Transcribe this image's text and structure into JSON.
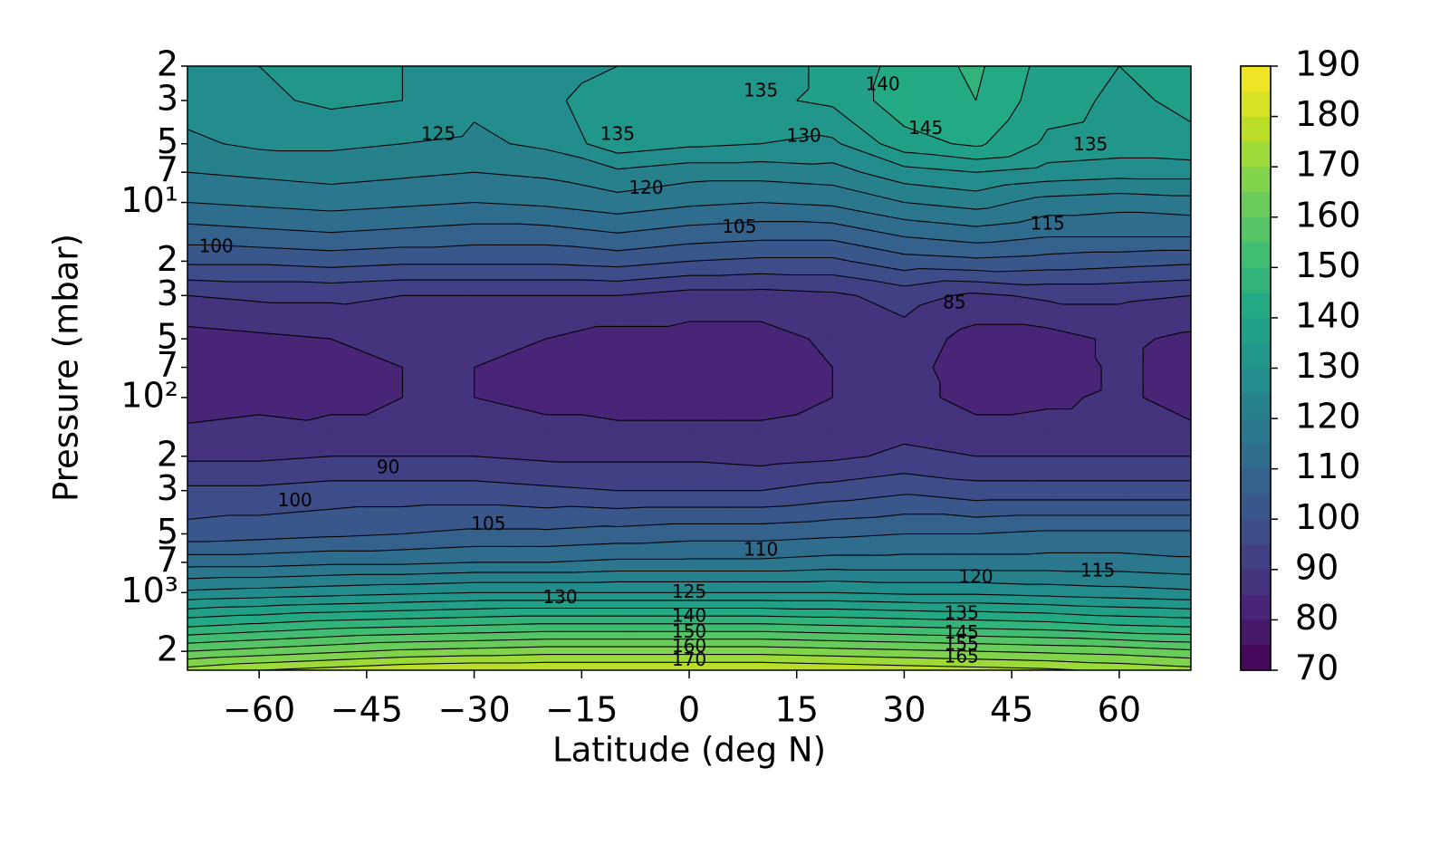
{
  "chart_data": {
    "type": "contourf",
    "xlabel": "Latitude (deg N)",
    "ylabel": "Pressure (mbar)",
    "xlim": [
      -70,
      70
    ],
    "xticks": [
      {
        "value": -60,
        "label": "−60"
      },
      {
        "value": -45,
        "label": "−45"
      },
      {
        "value": -30,
        "label": "−30"
      },
      {
        "value": -15,
        "label": "−15"
      },
      0,
      15,
      30,
      45,
      60
    ],
    "ylim": [
      2,
      2500
    ],
    "ylog": true,
    "yinverted": true,
    "yticks": [
      2,
      3,
      5,
      7,
      {
        "value": 10,
        "label": "10¹"
      },
      {
        "value": 20,
        "label": "2"
      },
      {
        "value": 30,
        "label": "3"
      },
      {
        "value": 50,
        "label": "5"
      },
      {
        "value": 70,
        "label": "7"
      },
      {
        "value": 100,
        "label": "10²"
      },
      {
        "value": 200,
        "label": "2"
      },
      {
        "value": 300,
        "label": "3"
      },
      {
        "value": 500,
        "label": "5"
      },
      {
        "value": 700,
        "label": "7"
      },
      {
        "value": 1000,
        "label": "10³"
      },
      {
        "value": 2000,
        "label": "2"
      }
    ],
    "colormap": "viridis",
    "clim": [
      70,
      190
    ],
    "cticks": [
      70,
      80,
      90,
      100,
      110,
      120,
      130,
      140,
      150,
      160,
      170,
      180,
      190
    ],
    "levels": [
      70,
      75,
      80,
      85,
      90,
      95,
      100,
      105,
      110,
      115,
      120,
      125,
      130,
      135,
      140,
      145,
      150,
      155,
      160,
      165,
      170,
      175,
      180,
      185,
      190
    ],
    "x": [
      -70,
      -60,
      -50,
      -40,
      -30,
      -20,
      -10,
      0,
      10,
      20,
      30,
      40,
      50,
      60,
      70
    ],
    "y": [
      2,
      3,
      5,
      7,
      10,
      15,
      20,
      30,
      50,
      70,
      100,
      150,
      200,
      300,
      500,
      700,
      1000,
      1500,
      2000,
      2500
    ],
    "z": [
      [
        128,
        130,
        132,
        130,
        127,
        125,
        130,
        133,
        133,
        136,
        142,
        146,
        138,
        135,
        137
      ],
      [
        127,
        129,
        131,
        130,
        126,
        128,
        135,
        134,
        134,
        136,
        143,
        145,
        137,
        134,
        136
      ],
      [
        124,
        126,
        126,
        125,
        124,
        126,
        133,
        131,
        130,
        129,
        138,
        141,
        134,
        133,
        134
      ],
      [
        120,
        121,
        122,
        121,
        120,
        121,
        124,
        122,
        122,
        123,
        128,
        130,
        128,
        127,
        127
      ],
      [
        115,
        116,
        117,
        116,
        115,
        116,
        118,
        116,
        115,
        116,
        120,
        122,
        118,
        117,
        118
      ],
      [
        107,
        108,
        109,
        108,
        107,
        107,
        109,
        107,
        106,
        106,
        110,
        112,
        110,
        110,
        110
      ],
      [
        101,
        101,
        102,
        101,
        101,
        101,
        102,
        100,
        99,
        99,
        103,
        104,
        103,
        102,
        101
      ],
      [
        90,
        91,
        91,
        90,
        90,
        90,
        90,
        88,
        88,
        89,
        92,
        89,
        91,
        91,
        90
      ],
      [
        83,
        84,
        85,
        86,
        86,
        85,
        83,
        83,
        83,
        86,
        88,
        83,
        83,
        86,
        84
      ],
      [
        82,
        83,
        84,
        85,
        85,
        84,
        82,
        82,
        82,
        85,
        87,
        82,
        82,
        86,
        83
      ],
      [
        82,
        83,
        84,
        85,
        85,
        84,
        83,
        83,
        83,
        85,
        87,
        83,
        84,
        86,
        83
      ],
      [
        86,
        87,
        86,
        86,
        86,
        86,
        86,
        86,
        86,
        87,
        89,
        87,
        87,
        87,
        86
      ],
      [
        89,
        89,
        90,
        90,
        90,
        89,
        89,
        89,
        88,
        89,
        91,
        90,
        90,
        90,
        90
      ],
      [
        96,
        96,
        97,
        97,
        97,
        96,
        95,
        95,
        95,
        97,
        99,
        97,
        97,
        97,
        97
      ],
      [
        102,
        103,
        104,
        105,
        106,
        106,
        107,
        108,
        108,
        109,
        110,
        110,
        111,
        111,
        111
      ],
      [
        113,
        113,
        114,
        114,
        115,
        115,
        116,
        116,
        116,
        117,
        117,
        117,
        117,
        117,
        116
      ],
      [
        126,
        127,
        128,
        129,
        130,
        130,
        130,
        130,
        130,
        130,
        129,
        129,
        128,
        127,
        126
      ],
      [
        145,
        147,
        149,
        150,
        151,
        152,
        152,
        152,
        152,
        151,
        150,
        149,
        148,
        146,
        145
      ],
      [
        160,
        162,
        164,
        166,
        167,
        168,
        168,
        168,
        168,
        167,
        166,
        165,
        164,
        163,
        161
      ],
      [
        172,
        175,
        177,
        179,
        180,
        180,
        180,
        180,
        180,
        179,
        178,
        177,
        176,
        174,
        172
      ]
    ],
    "contour_labels": [
      {
        "value": 125,
        "x": -35,
        "y": 4.5
      },
      {
        "value": 135,
        "x": -10,
        "y": 4.5
      },
      {
        "value": 135,
        "x": 10,
        "y": 2.7
      },
      {
        "value": 130,
        "x": 16,
        "y": 4.6
      },
      {
        "value": 140,
        "x": 27,
        "y": 2.5
      },
      {
        "value": 145,
        "x": 33,
        "y": 4.2
      },
      {
        "value": 135,
        "x": 56,
        "y": 5.1
      },
      {
        "value": 120,
        "x": -6,
        "y": 8.5
      },
      {
        "value": 105,
        "x": 7,
        "y": 13.5
      },
      {
        "value": 115,
        "x": 50,
        "y": 13
      },
      {
        "value": 100,
        "x": -66,
        "y": 17
      },
      {
        "value": 85,
        "x": 37,
        "y": 33
      },
      {
        "value": 90,
        "x": -42,
        "y": 230
      },
      {
        "value": 100,
        "x": -55,
        "y": 340
      },
      {
        "value": 105,
        "x": -28,
        "y": 450
      },
      {
        "value": 110,
        "x": 10,
        "y": 610
      },
      {
        "value": 115,
        "x": 57,
        "y": 780
      },
      {
        "value": 120,
        "x": 40,
        "y": 840
      },
      {
        "value": 130,
        "x": -18,
        "y": 1070
      },
      {
        "value": 125,
        "x": 0,
        "y": 1000
      },
      {
        "value": 140,
        "x": 0,
        "y": 1330
      },
      {
        "value": 135,
        "x": 38,
        "y": 1290
      },
      {
        "value": 150,
        "x": 0,
        "y": 1600
      },
      {
        "value": 145,
        "x": 38,
        "y": 1620
      },
      {
        "value": 160,
        "x": 0,
        "y": 1900
      },
      {
        "value": 155,
        "x": 38,
        "y": 1850
      },
      {
        "value": 170,
        "x": 0,
        "y": 2230
      },
      {
        "value": 165,
        "x": 38,
        "y": 2150
      }
    ]
  }
}
